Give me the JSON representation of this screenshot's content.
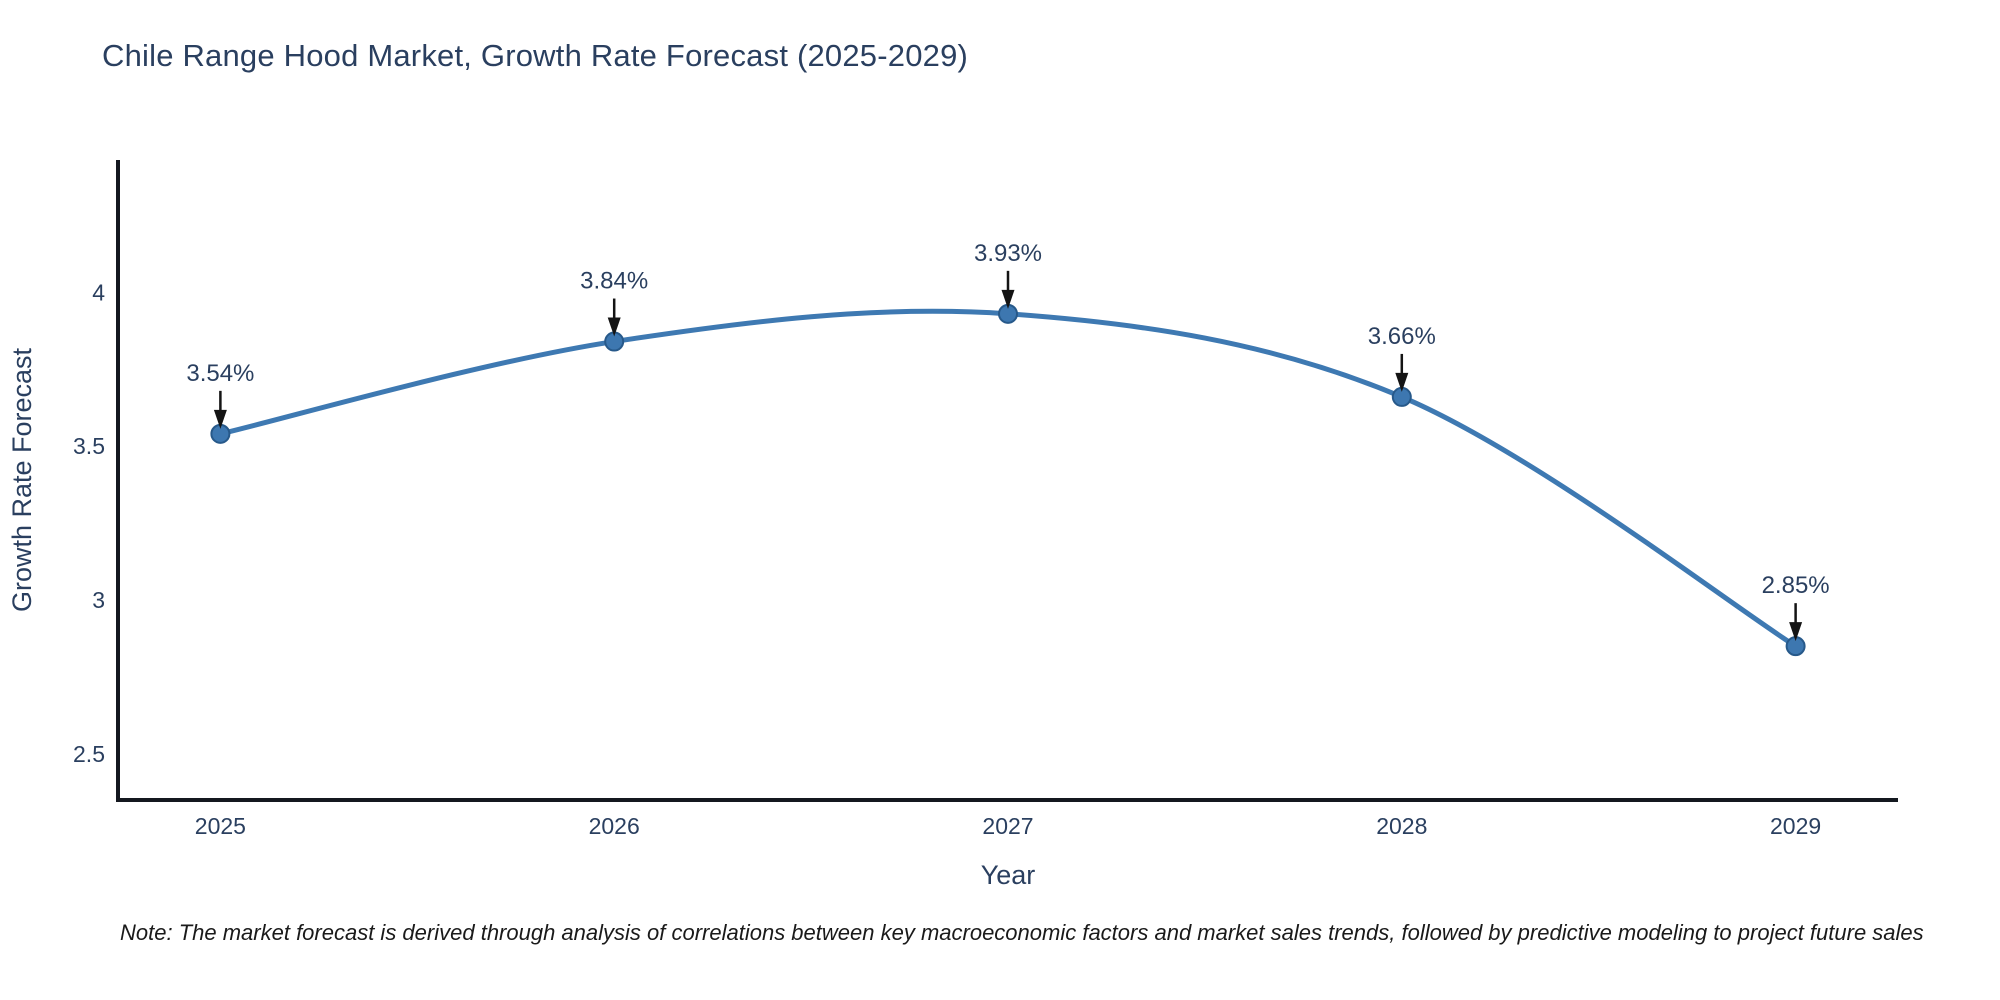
{
  "page": {
    "background": "#ffffff"
  },
  "chart_data": {
    "type": "line",
    "title": "Chile Range Hood Market, Growth Rate Forecast (2025-2029)",
    "xlabel": "Year",
    "ylabel": "Growth Rate Forecast",
    "x": [
      2025,
      2026,
      2027,
      2028,
      2029
    ],
    "series": [
      {
        "name": "Growth Rate Forecast",
        "values": [
          3.54,
          3.84,
          3.93,
          3.66,
          2.85
        ]
      }
    ],
    "point_labels": [
      "3.54%",
      "3.84%",
      "3.93%",
      "3.66%",
      "2.85%"
    ],
    "xtick_labels": [
      "2025",
      "2026",
      "2027",
      "2028",
      "2029"
    ],
    "ytick_values": [
      2.5,
      3,
      3.5,
      4
    ],
    "ytick_labels": [
      "2.5",
      "3",
      "3.5",
      "4"
    ],
    "xlim": [
      2024.74,
      2029.26
    ],
    "ylim": [
      2.35,
      4.43
    ],
    "grid": false,
    "legend_position": "none",
    "line_shape": "spline",
    "colors": {
      "line": "#3e79b2",
      "marker_fill": "#3d77b0",
      "marker_edge": "#27598a",
      "axis": "#14181f",
      "tick_text": "#2a3f5f",
      "annotation_text": "#2a3f5f",
      "annotation_arrow": "#141414"
    }
  },
  "footnote": {
    "text": "Note: The market forecast is derived through analysis of correlations between key macroeconomic factors and market sales trends, followed by predictive modeling to project future sales"
  }
}
